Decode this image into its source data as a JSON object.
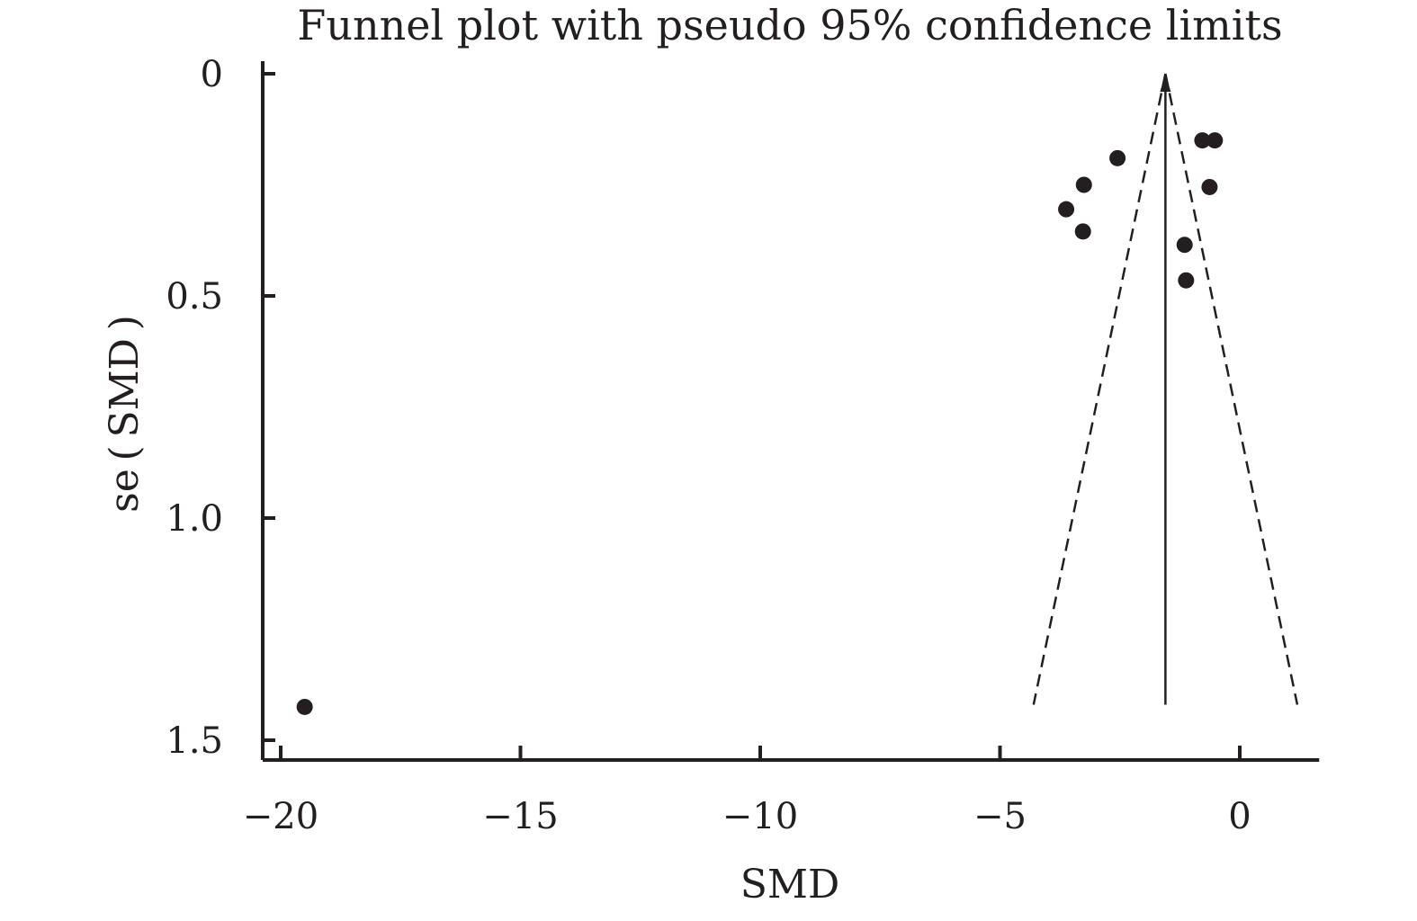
{
  "chart_data": {
    "type": "scatter",
    "title": "Funnel plot with pseudo 95% confidence limits",
    "xlabel": "SMD",
    "ylabel": "se ( SMD )",
    "xlim": [
      -20.4,
      1.6
    ],
    "ylim": [
      0,
      1.55
    ],
    "y_inverted": true,
    "x_ticks": [
      -20,
      -15,
      -10,
      -5,
      0
    ],
    "x_tick_labels": [
      "−20",
      "−15",
      "−10",
      "−5",
      "0"
    ],
    "y_ticks": [
      0,
      0.5,
      1.0,
      1.5
    ],
    "y_tick_labels": [
      "0",
      "0.5",
      "1.0",
      "1.5"
    ],
    "pooled_effect": -1.55,
    "funnel": {
      "apex": {
        "x": -1.55,
        "se": 0
      },
      "left_bottom": {
        "x": -4.3,
        "se": 1.42
      },
      "right_bottom": {
        "x": 1.2,
        "se": 1.42
      }
    },
    "points": [
      {
        "x": -0.78,
        "y": 0.15
      },
      {
        "x": -0.52,
        "y": 0.15
      },
      {
        "x": -2.55,
        "y": 0.19
      },
      {
        "x": -3.25,
        "y": 0.25
      },
      {
        "x": -0.63,
        "y": 0.255
      },
      {
        "x": -3.62,
        "y": 0.305
      },
      {
        "x": -3.27,
        "y": 0.355
      },
      {
        "x": -1.15,
        "y": 0.385
      },
      {
        "x": -1.12,
        "y": 0.465
      },
      {
        "x": -19.5,
        "y": 1.425
      }
    ],
    "grid": false,
    "colors": {
      "ink": "#231f20",
      "background": "#ffffff"
    }
  }
}
